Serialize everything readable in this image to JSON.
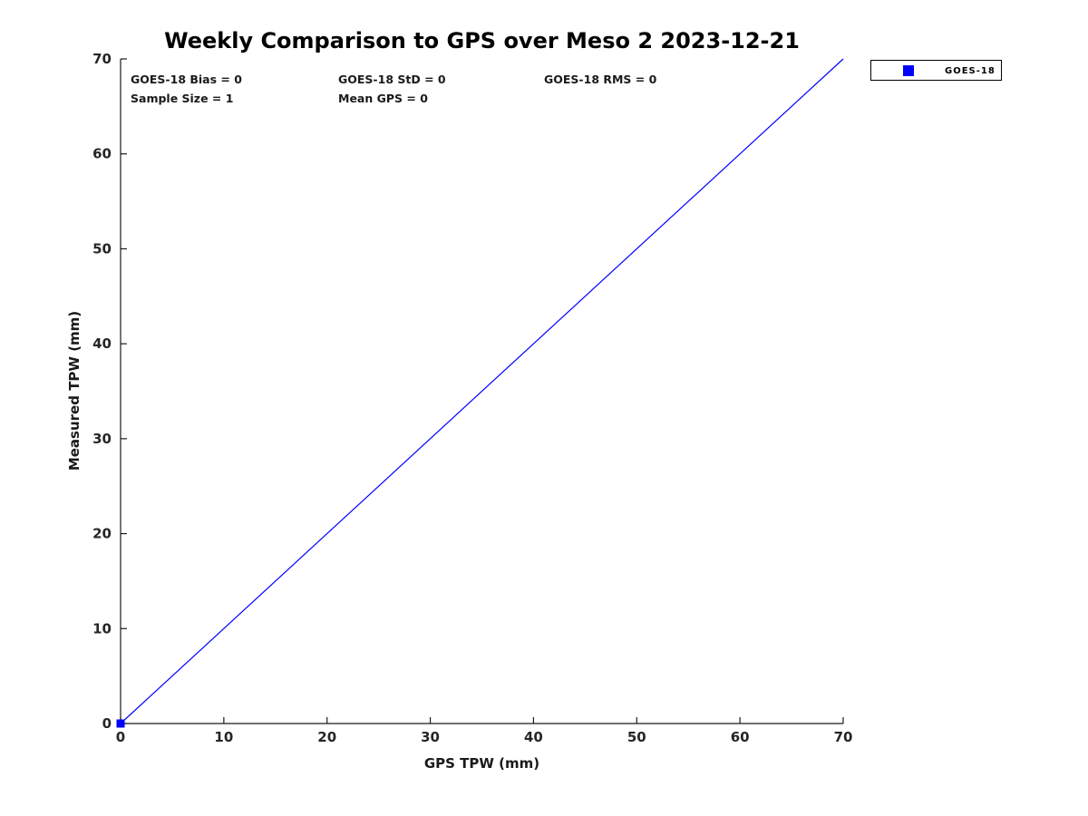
{
  "chart_data": {
    "type": "scatter",
    "title": "Weekly Comparison to GPS over Meso 2 2023-12-21",
    "xlabel": "GPS TPW (mm)",
    "ylabel": "Measured TPW (mm)",
    "xlim": [
      0,
      70
    ],
    "ylim": [
      0,
      70
    ],
    "xticks": [
      0,
      10,
      20,
      30,
      40,
      50,
      60,
      70
    ],
    "yticks": [
      0,
      10,
      20,
      30,
      40,
      50,
      60,
      70
    ],
    "grid": false,
    "box": false,
    "tick_direction": "in",
    "legend_position": "outside-top-right",
    "series": [
      {
        "name": "GOES-18",
        "marker": "square",
        "color": "#0000ff",
        "points": [
          [
            0,
            0
          ]
        ]
      }
    ],
    "reference_line": {
      "x": [
        0,
        70
      ],
      "y": [
        0,
        70
      ],
      "color": "#0000ff",
      "width": 1.2
    },
    "annotations": [
      {
        "id": "bias",
        "text": "GOES-18 Bias = 0"
      },
      {
        "id": "std",
        "text": "GOES-18 StD = 0"
      },
      {
        "id": "rms",
        "text": "GOES-18 RMS = 0"
      },
      {
        "id": "sample",
        "text": "Sample Size = 1"
      },
      {
        "id": "mean",
        "text": "Mean GPS = 0"
      }
    ]
  },
  "colors": {
    "series": "#0000ff",
    "axis": "#1a1a1a",
    "tick_label": "#262626",
    "title": "#000000",
    "background": "#ffffff"
  },
  "legend": {
    "entries": [
      {
        "label": "GOES-18",
        "marker": "square",
        "color": "#0000ff"
      }
    ]
  }
}
